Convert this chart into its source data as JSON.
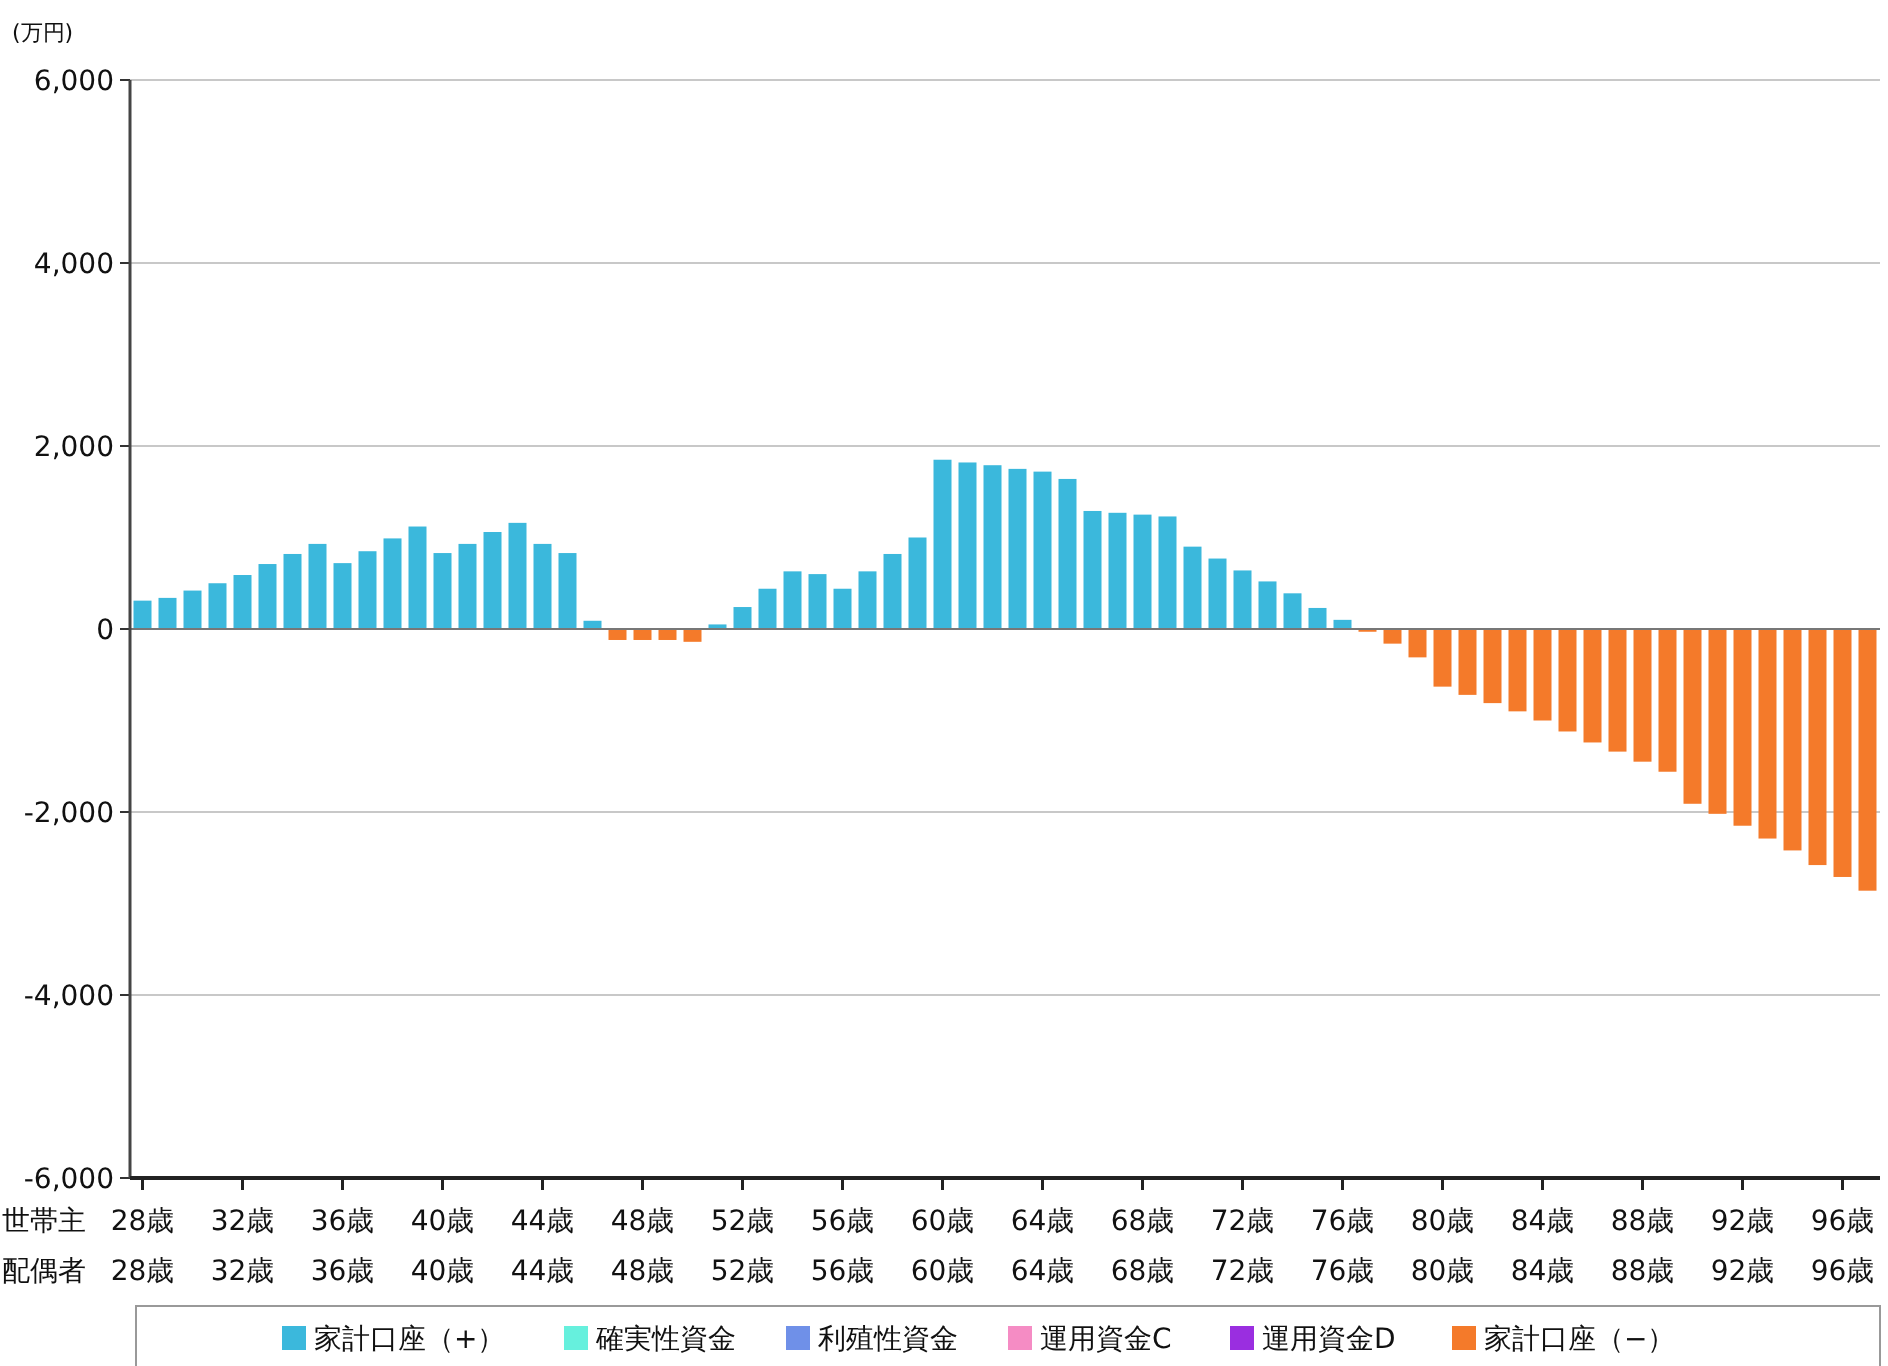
{
  "chart_data": {
    "type": "bar",
    "ylabel": "(万円)",
    "grid": "y",
    "legend": "bottom",
    "categories": [
      "28歳\n28歳",
      null,
      null,
      null,
      "32歳\n32歳",
      null,
      null,
      null,
      "36歳\n36歳",
      null,
      null,
      null,
      "40歳\n40歳",
      null,
      null,
      null,
      "44歳\n44歳",
      null,
      null,
      null,
      "48歳\n48歳",
      null,
      null,
      null,
      "52歳\n52歳",
      null,
      null,
      null,
      "56歳\n56歳",
      null,
      null,
      null,
      "60歳\n60歳",
      null,
      null,
      null,
      "64歳\n64歳",
      null,
      null,
      null,
      "68歳\n68歳",
      null,
      null,
      null,
      "72歳\n72歳",
      null,
      null,
      null,
      "76歳\n76歳",
      null,
      null,
      null,
      "80歳\n80歳",
      null,
      null,
      null,
      "84歳\n84歳",
      null,
      null,
      null,
      "88歳\n88歳",
      null,
      null,
      null,
      "92歳\n92歳",
      null,
      null,
      null,
      "96歳\n96歳",
      null
    ],
    "ylim": [
      -6000,
      6000
    ],
    "yticks": [
      {
        "value": -6000,
        "label": "-6,000"
      },
      {
        "value": -4000,
        "label": "-4,000"
      },
      {
        "value": -2000,
        "label": "-2,000"
      },
      0,
      {
        "value": 2000,
        "label": "2,000"
      },
      {
        "value": 4000,
        "label": "4,000"
      },
      {
        "value": 6000,
        "label": "6,000"
      }
    ],
    "annotations": [
      "世帯主",
      "配偶者"
    ],
    "series": [
      {
        "name": "家計口座（+）",
        "color": "#3bb8dc",
        "values": [
          310,
          340,
          420,
          500,
          590,
          710,
          820,
          930,
          720,
          850,
          990,
          1120,
          830,
          930,
          1060,
          1160,
          930,
          830,
          90,
          null,
          null,
          null,
          null,
          50,
          240,
          440,
          630,
          600,
          440,
          630,
          820,
          1000,
          1850,
          1820,
          1790,
          1750,
          1720,
          1640,
          1290,
          1270,
          1250,
          1230,
          900,
          770,
          640,
          520,
          390,
          230,
          100,
          null,
          null,
          null,
          null,
          null,
          null,
          null,
          null,
          null,
          null,
          null,
          null,
          null,
          null,
          null,
          null,
          null,
          null,
          null,
          null,
          null
        ]
      },
      {
        "name": "確実性資金",
        "color": "#66f0dd",
        "values": [
          null,
          null,
          null,
          null,
          null,
          null,
          null,
          null,
          null,
          null,
          null,
          null,
          null,
          null,
          null,
          null,
          null,
          null,
          null,
          null,
          null,
          null,
          null,
          null,
          null,
          null,
          null,
          null,
          null,
          null,
          null,
          null,
          null,
          null,
          null,
          null,
          null,
          null,
          null,
          null,
          null,
          null,
          null,
          null,
          null,
          null,
          null,
          null,
          null,
          null,
          null,
          null,
          null,
          null,
          null,
          null,
          null,
          null,
          null,
          null,
          null,
          null,
          null,
          null,
          null,
          null,
          null,
          null,
          null,
          null
        ]
      },
      {
        "name": "利殖性資金",
        "color": "#6f90e8",
        "values": [
          null,
          null,
          null,
          null,
          null,
          null,
          null,
          null,
          null,
          null,
          null,
          null,
          null,
          null,
          null,
          null,
          null,
          null,
          null,
          null,
          null,
          null,
          null,
          null,
          null,
          null,
          null,
          null,
          null,
          null,
          null,
          null,
          null,
          null,
          null,
          null,
          null,
          null,
          null,
          null,
          null,
          null,
          null,
          null,
          null,
          null,
          null,
          null,
          null,
          null,
          null,
          null,
          null,
          null,
          null,
          null,
          null,
          null,
          null,
          null,
          null,
          null,
          null,
          null,
          null,
          null,
          null,
          null,
          null,
          null
        ]
      },
      {
        "name": "運用資金C",
        "color": "#f58cc4",
        "values": [
          null,
          null,
          null,
          null,
          null,
          null,
          null,
          null,
          null,
          null,
          null,
          null,
          null,
          null,
          null,
          null,
          null,
          null,
          null,
          null,
          null,
          null,
          null,
          null,
          null,
          null,
          null,
          null,
          null,
          null,
          null,
          null,
          null,
          null,
          null,
          null,
          null,
          null,
          null,
          null,
          null,
          null,
          null,
          null,
          null,
          null,
          null,
          null,
          null,
          null,
          null,
          null,
          null,
          null,
          null,
          null,
          null,
          null,
          null,
          null,
          null,
          null,
          null,
          null,
          null,
          null,
          null,
          null,
          null,
          null
        ]
      },
      {
        "name": "運用資金D",
        "color": "#9a2ee0",
        "values": [
          null,
          null,
          null,
          null,
          null,
          null,
          null,
          null,
          null,
          null,
          null,
          null,
          null,
          null,
          null,
          null,
          null,
          null,
          null,
          null,
          null,
          null,
          null,
          null,
          null,
          null,
          null,
          null,
          null,
          null,
          null,
          null,
          null,
          null,
          null,
          null,
          null,
          null,
          null,
          null,
          null,
          null,
          null,
          null,
          null,
          null,
          null,
          null,
          null,
          null,
          null,
          null,
          null,
          null,
          null,
          null,
          null,
          null,
          null,
          null,
          null,
          null,
          null,
          null,
          null,
          null,
          null,
          null,
          null,
          null
        ]
      },
      {
        "name": "家計口座（−）",
        "color": "#f47a2a",
        "values": [
          null,
          null,
          null,
          null,
          null,
          null,
          null,
          null,
          null,
          null,
          null,
          null,
          null,
          null,
          null,
          null,
          null,
          null,
          null,
          -120,
          -120,
          -120,
          -140,
          null,
          null,
          null,
          null,
          null,
          null,
          null,
          null,
          null,
          null,
          null,
          null,
          null,
          null,
          null,
          null,
          null,
          null,
          null,
          null,
          null,
          null,
          null,
          null,
          null,
          null,
          -30,
          -160,
          -310,
          -630,
          -720,
          -810,
          -900,
          -1000,
          -1120,
          -1240,
          -1340,
          -1450,
          -1560,
          -1910,
          -2020,
          -2150,
          -2290,
          -2420,
          -2580,
          -2710,
          -2860
        ]
      }
    ]
  }
}
